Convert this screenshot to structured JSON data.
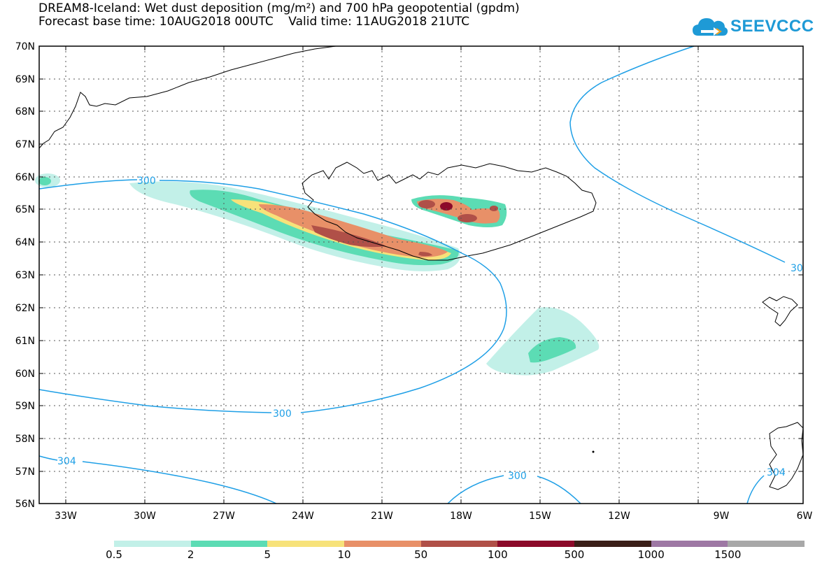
{
  "header": {
    "title_line1": "DREAM8-Iceland: Wet dust deposition (mg/m²) and 700 hPa geopotential (gpdm)",
    "title_line2": "Forecast base time: 10AUG2018 00UTC    Valid time: 11AUG2018 21UTC"
  },
  "logo": {
    "text": "SEEVCCC",
    "icon": "cloud-icon",
    "color": "#1e9ad6"
  },
  "map": {
    "lat_labels": [
      "70N",
      "69N",
      "68N",
      "67N",
      "66N",
      "65N",
      "64N",
      "63N",
      "62N",
      "61N",
      "60N",
      "59N",
      "58N",
      "57N",
      "56N"
    ],
    "lon_labels": [
      "33W",
      "30W",
      "27W",
      "24W",
      "21W",
      "18W",
      "15W",
      "12W",
      "9W",
      "6W"
    ],
    "contour_labels": [
      "300",
      "300",
      "304",
      "300",
      "30",
      "304"
    ],
    "contour_color": "#1e9fe6"
  },
  "legend": {
    "colors": [
      "#c2f0e8",
      "#5cdcb4",
      "#f7e27a",
      "#e89068",
      "#b05048",
      "#8c0a2a",
      "#3a1e18",
      "#9e78a4",
      "#a8a8a8"
    ],
    "labels": [
      "0.5",
      "2",
      "5",
      "10",
      "50",
      "100",
      "500",
      "1000",
      "1500"
    ]
  }
}
